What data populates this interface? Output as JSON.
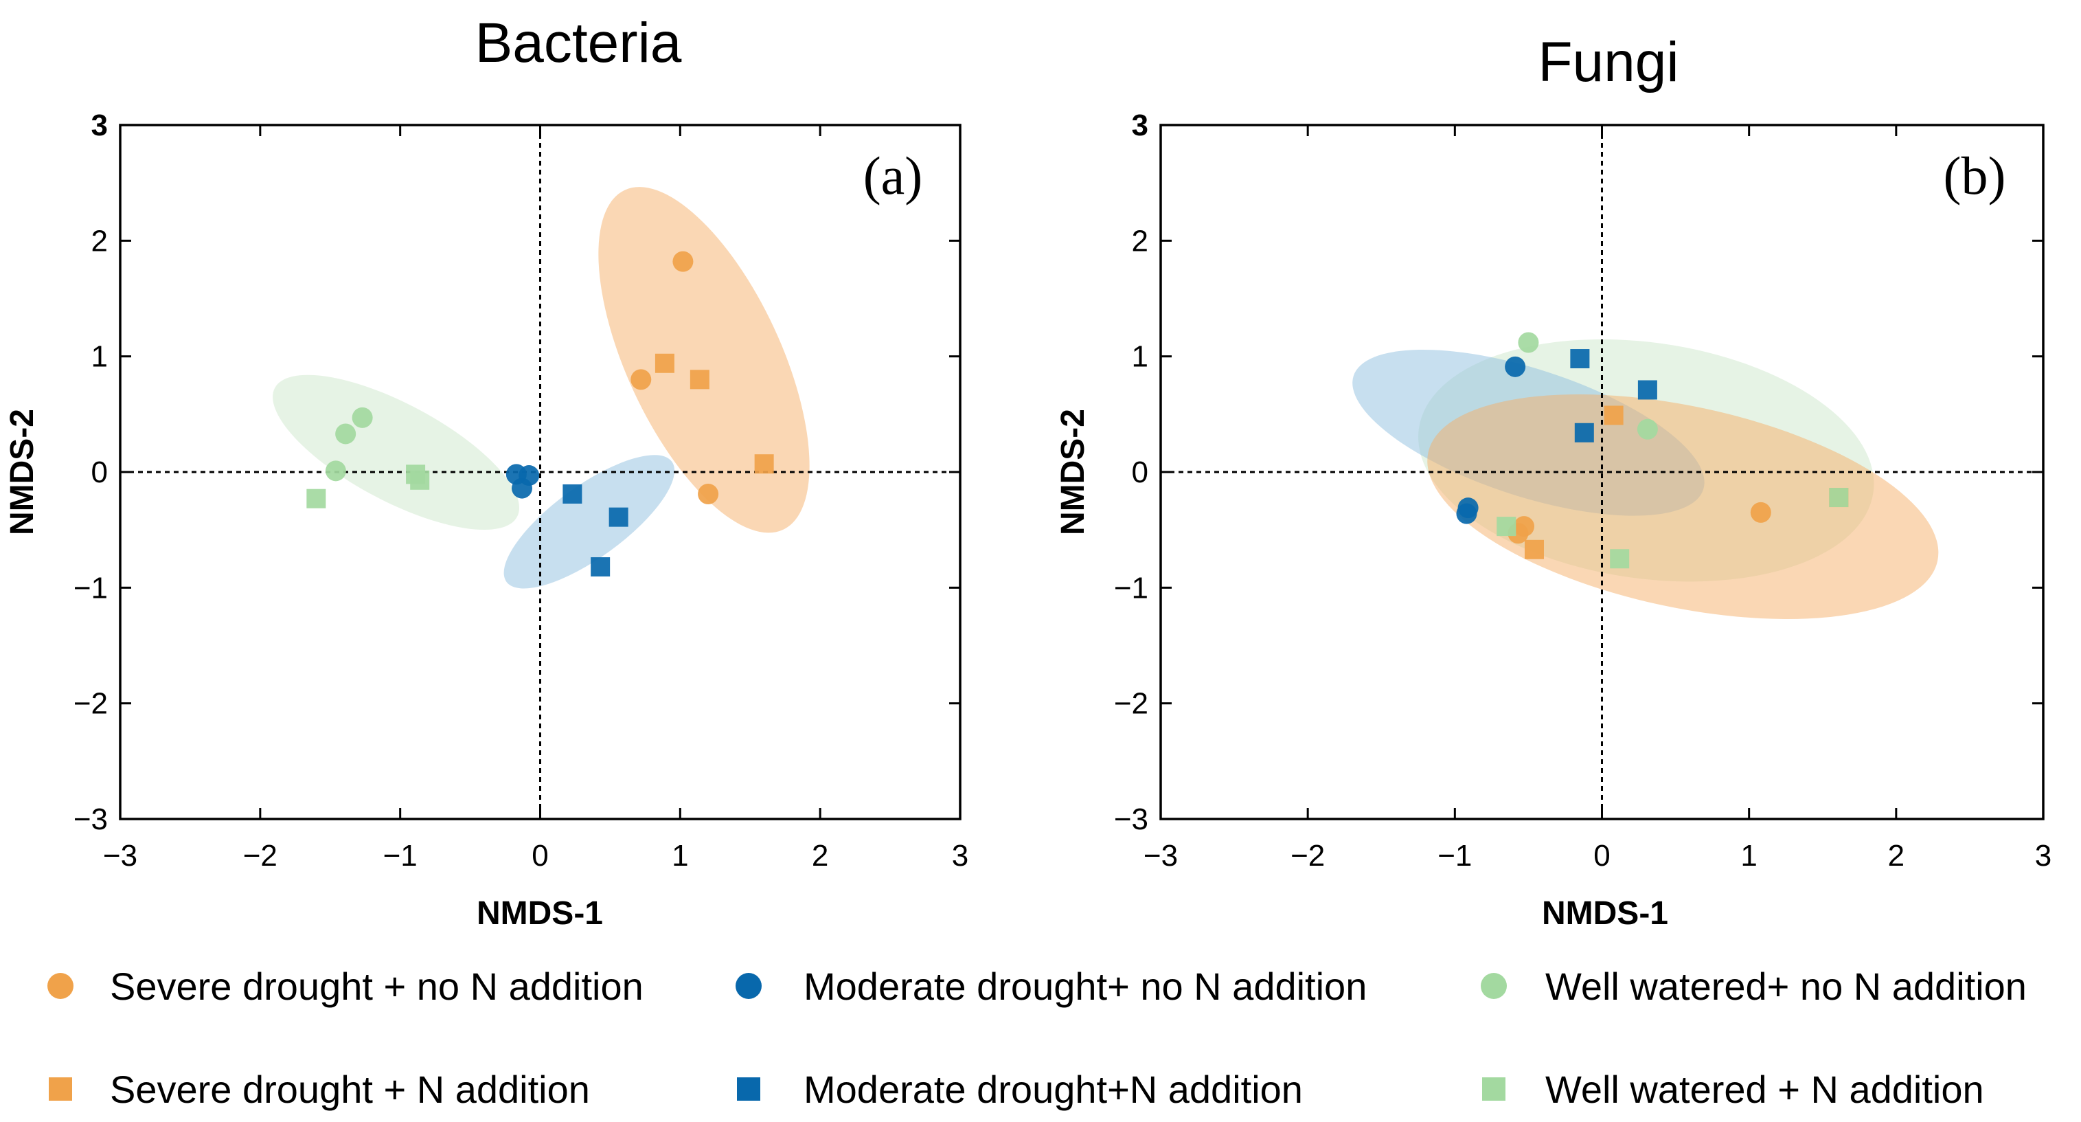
{
  "chart_data": [
    {
      "type": "scatter",
      "title": "Bacteria",
      "panel_label": "(a)",
      "xlabel": "NMDS-1",
      "ylabel": "NMDS-2",
      "xlim": [
        -3,
        3
      ],
      "ylim": [
        -3,
        3
      ],
      "xticks": [
        "−3",
        "−2",
        "−1",
        "0",
        "1",
        "2",
        "3"
      ],
      "yticks": [
        "−3",
        "−2",
        "−1",
        "0",
        "1",
        "2",
        "3"
      ],
      "ellipses": [
        {
          "group": "severe",
          "color": "#f5b06a",
          "cx": 1.17,
          "cy": 0.97,
          "rx": 0.55,
          "ry": 1.62,
          "angle": -25
        },
        {
          "group": "moderate",
          "color": "#8fc0df",
          "cx": 0.35,
          "cy": -0.43,
          "rx": 0.73,
          "ry": 0.31,
          "angle": -36
        },
        {
          "group": "well",
          "color": "#cde8cc",
          "cx": -1.03,
          "cy": 0.17,
          "rx": 0.98,
          "ry": 0.42,
          "angle": 28
        }
      ],
      "series": [
        {
          "name": "Severe drought + no N addition",
          "marker": "circle",
          "color": "#f0a24a",
          "points": [
            [
              1.02,
              1.82
            ],
            [
              0.72,
              0.8
            ],
            [
              1.2,
              -0.19
            ]
          ]
        },
        {
          "name": "Severe drought + N addition",
          "marker": "square",
          "color": "#f0a24a",
          "points": [
            [
              0.89,
              0.94
            ],
            [
              1.14,
              0.8
            ],
            [
              1.6,
              0.07
            ]
          ]
        },
        {
          "name": "Moderate drought+ no N addition",
          "marker": "circle",
          "color": "#0868ac",
          "points": [
            [
              -0.17,
              -0.02
            ],
            [
              -0.08,
              -0.03
            ],
            [
              -0.13,
              -0.14
            ]
          ]
        },
        {
          "name": "Moderate drought+N addition",
          "marker": "square",
          "color": "#0868ac",
          "points": [
            [
              0.23,
              -0.19
            ],
            [
              0.56,
              -0.39
            ],
            [
              0.43,
              -0.82
            ]
          ]
        },
        {
          "name": "Well watered+ no N addition",
          "marker": "circle",
          "color": "#a3d9a0",
          "points": [
            [
              -1.27,
              0.47
            ],
            [
              -1.39,
              0.33
            ],
            [
              -1.46,
              0.01
            ]
          ]
        },
        {
          "name": "Well watered + N addition",
          "marker": "square",
          "color": "#a3d9a0",
          "points": [
            [
              -0.89,
              -0.02
            ],
            [
              -0.86,
              -0.07
            ],
            [
              -1.6,
              -0.23
            ]
          ]
        }
      ]
    },
    {
      "type": "scatter",
      "title": "Fungi",
      "panel_label": "(b)",
      "xlabel": "NMDS-1",
      "ylabel": "NMDS-2",
      "xlim": [
        -3,
        3
      ],
      "ylim": [
        -3,
        3
      ],
      "xticks": [
        "−3",
        "−2",
        "−1",
        "0",
        "1",
        "2",
        "3"
      ],
      "yticks": [
        "−3",
        "−2",
        "−1",
        "0",
        "1",
        "2",
        "3"
      ],
      "ellipses": [
        {
          "group": "well",
          "color": "#cde8cc",
          "cx": 0.3,
          "cy": 0.1,
          "rx": 1.56,
          "ry": 1.02,
          "angle": 8
        },
        {
          "group": "moderate",
          "color": "#8fc0df",
          "cx": -0.5,
          "cy": 0.34,
          "rx": 1.25,
          "ry": 0.55,
          "angle": 18
        },
        {
          "group": "severe",
          "color": "#f5b06a",
          "cx": 0.55,
          "cy": -0.3,
          "rx": 1.77,
          "ry": 0.87,
          "angle": 12
        }
      ],
      "series": [
        {
          "name": "Severe drought + no N addition",
          "marker": "circle",
          "color": "#f0a24a",
          "points": [
            [
              -0.53,
              -0.47
            ],
            [
              -0.57,
              -0.53
            ],
            [
              1.08,
              -0.35
            ]
          ]
        },
        {
          "name": "Severe drought + N addition",
          "marker": "square",
          "color": "#f0a24a",
          "points": [
            [
              0.08,
              0.49
            ],
            [
              -0.46,
              -0.67
            ],
            [
              1.61,
              -0.22
            ]
          ]
        },
        {
          "name": "Moderate drought+ no N addition",
          "marker": "circle",
          "color": "#0868ac",
          "points": [
            [
              -0.59,
              0.91
            ],
            [
              -0.91,
              -0.31
            ],
            [
              -0.92,
              -0.36
            ]
          ]
        },
        {
          "name": "Moderate drought+N addition",
          "marker": "square",
          "color": "#0868ac",
          "points": [
            [
              -0.15,
              0.98
            ],
            [
              0.31,
              0.71
            ],
            [
              -0.12,
              0.34
            ]
          ]
        },
        {
          "name": "Well watered+ no N addition",
          "marker": "circle",
          "color": "#a3d9a0",
          "points": [
            [
              -0.5,
              1.12
            ],
            [
              0.31,
              0.37
            ]
          ]
        },
        {
          "name": "Well watered + N addition",
          "marker": "square",
          "color": "#a3d9a0",
          "points": [
            [
              -0.65,
              -0.47
            ],
            [
              0.12,
              -0.75
            ],
            [
              1.61,
              -0.22
            ]
          ]
        }
      ]
    }
  ],
  "legend": {
    "items": [
      {
        "label": "Severe drought + no N addition",
        "marker": "circle",
        "color": "#f0a24a"
      },
      {
        "label": "Moderate drought+ no N addition",
        "marker": "circle",
        "color": "#0868ac"
      },
      {
        "label": "Well watered+ no N addition",
        "marker": "circle",
        "color": "#a3d9a0"
      },
      {
        "label": "Severe drought +  N addition",
        "marker": "square",
        "color": "#f0a24a"
      },
      {
        "label": "Moderate drought+N addition",
        "marker": "square",
        "color": "#0868ac"
      },
      {
        "label": "Well watered + N addition",
        "marker": "square",
        "color": "#a3d9a0"
      }
    ]
  }
}
